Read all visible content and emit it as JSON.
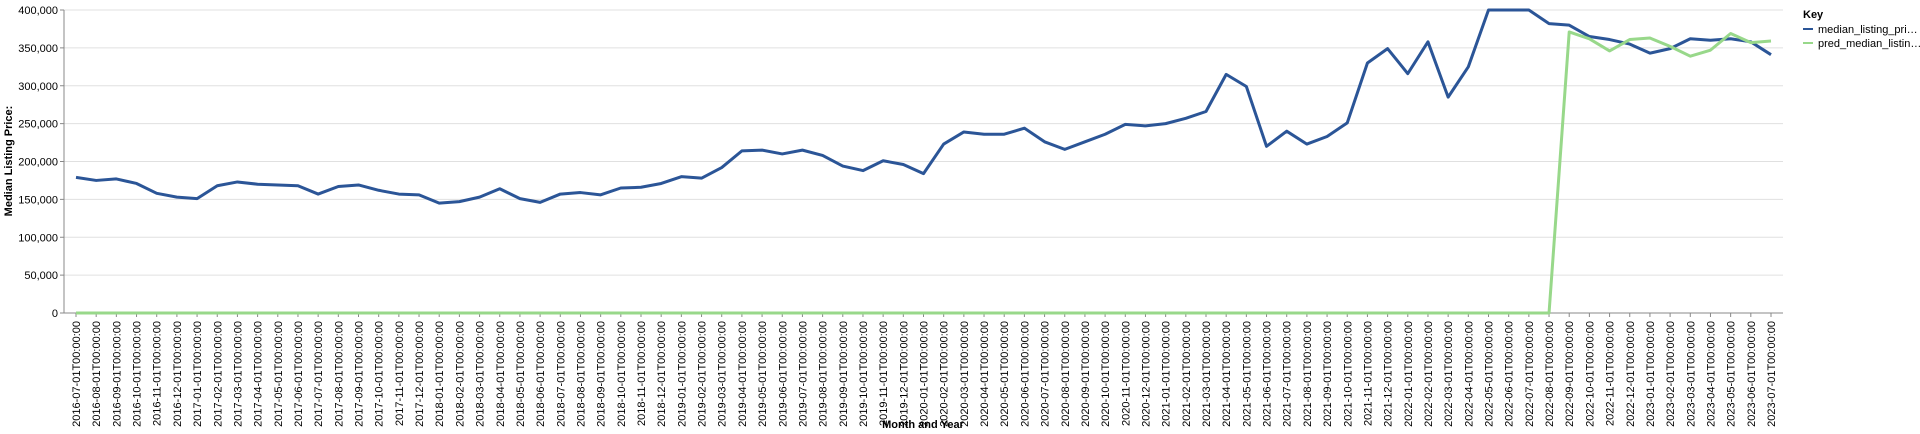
{
  "chart_data": {
    "type": "line",
    "y_label": "Median Listing Price:",
    "x_label": "Month and Year",
    "legend_title": "Key",
    "legend_position": "right",
    "grid": true,
    "ylim": [
      0,
      400000
    ],
    "yticks": [
      {
        "value": 0,
        "label": "0"
      },
      {
        "value": 50000,
        "label": "50,000"
      },
      {
        "value": 100000,
        "label": "100,000"
      },
      {
        "value": 150000,
        "label": "150,000"
      },
      {
        "value": 200000,
        "label": "200,000"
      },
      {
        "value": 250000,
        "label": "250,000"
      },
      {
        "value": 300000,
        "label": "300,000"
      },
      {
        "value": 350000,
        "label": "350,000"
      },
      {
        "value": 400000,
        "label": "400,000"
      }
    ],
    "categories": [
      "2016-07-01T00:00:00",
      "2016-08-01T00:00:00",
      "2016-09-01T00:00:00",
      "2016-10-01T00:00:00",
      "2016-11-01T00:00:00",
      "2016-12-01T00:00:00",
      "2017-01-01T00:00:00",
      "2017-02-01T00:00:00",
      "2017-03-01T00:00:00",
      "2017-04-01T00:00:00",
      "2017-05-01T00:00:00",
      "2017-06-01T00:00:00",
      "2017-07-01T00:00:00",
      "2017-08-01T00:00:00",
      "2017-09-01T00:00:00",
      "2017-10-01T00:00:00",
      "2017-11-01T00:00:00",
      "2017-12-01T00:00:00",
      "2018-01-01T00:00:00",
      "2018-02-01T00:00:00",
      "2018-03-01T00:00:00",
      "2018-04-01T00:00:00",
      "2018-05-01T00:00:00",
      "2018-06-01T00:00:00",
      "2018-07-01T00:00:00",
      "2018-08-01T00:00:00",
      "2018-09-01T00:00:00",
      "2018-10-01T00:00:00",
      "2018-11-01T00:00:00",
      "2018-12-01T00:00:00",
      "2019-01-01T00:00:00",
      "2019-02-01T00:00:00",
      "2019-03-01T00:00:00",
      "2019-04-01T00:00:00",
      "2019-05-01T00:00:00",
      "2019-06-01T00:00:00",
      "2019-07-01T00:00:00",
      "2019-08-01T00:00:00",
      "2019-09-01T00:00:00",
      "2019-10-01T00:00:00",
      "2019-11-01T00:00:00",
      "2019-12-01T00:00:00",
      "2020-01-01T00:00:00",
      "2020-02-01T00:00:00",
      "2020-03-01T00:00:00",
      "2020-04-01T00:00:00",
      "2020-05-01T00:00:00",
      "2020-06-01T00:00:00",
      "2020-07-01T00:00:00",
      "2020-08-01T00:00:00",
      "2020-09-01T00:00:00",
      "2020-10-01T00:00:00",
      "2020-11-01T00:00:00",
      "2020-12-01T00:00:00",
      "2021-01-01T00:00:00",
      "2021-02-01T00:00:00",
      "2021-03-01T00:00:00",
      "2021-04-01T00:00:00",
      "2021-05-01T00:00:00",
      "2021-06-01T00:00:00",
      "2021-07-01T00:00:00",
      "2021-08-01T00:00:00",
      "2021-09-01T00:00:00",
      "2021-10-01T00:00:00",
      "2021-11-01T00:00:00",
      "2021-12-01T00:00:00",
      "2022-01-01T00:00:00",
      "2022-02-01T00:00:00",
      "2022-03-01T00:00:00",
      "2022-04-01T00:00:00",
      "2022-05-01T00:00:00",
      "2022-06-01T00:00:00",
      "2022-07-01T00:00:00",
      "2022-08-01T00:00:00",
      "2022-09-01T00:00:00",
      "2022-10-01T00:00:00",
      "2022-11-01T00:00:00",
      "2022-12-01T00:00:00",
      "2023-01-01T00:00:00",
      "2023-02-01T00:00:00",
      "2023-03-01T00:00:00",
      "2023-04-01T00:00:00",
      "2023-05-01T00:00:00",
      "2023-06-01T00:00:00",
      "2023-07-01T00:00:00"
    ],
    "series": [
      {
        "name": "median_listing_pri…",
        "color": "#2b5597",
        "values": [
          179000,
          175000,
          177000,
          171000,
          158000,
          153000,
          151000,
          168000,
          173000,
          170000,
          169000,
          168000,
          157000,
          167000,
          169000,
          162000,
          157000,
          156000,
          145000,
          147000,
          153000,
          164000,
          151000,
          146000,
          157000,
          159000,
          156000,
          165000,
          166000,
          171000,
          180000,
          178000,
          192000,
          214000,
          215000,
          210000,
          215000,
          208000,
          194000,
          188000,
          201000,
          196000,
          184000,
          223000,
          239000,
          236000,
          236000,
          244000,
          226000,
          216000,
          226000,
          236000,
          249000,
          247000,
          250000,
          257000,
          266000,
          315000,
          299000,
          220000,
          240000,
          223000,
          233000,
          251000,
          330000,
          349000,
          316000,
          358000,
          285000,
          325000,
          400000,
          400000,
          400000,
          382000,
          380000,
          365000,
          361000,
          355000,
          343000,
          349000,
          362000,
          360000,
          362000,
          358000,
          341000
        ]
      },
      {
        "name": "pred_median_listin…",
        "color": "#98d88a",
        "values": [
          0,
          0,
          0,
          0,
          0,
          0,
          0,
          0,
          0,
          0,
          0,
          0,
          0,
          0,
          0,
          0,
          0,
          0,
          0,
          0,
          0,
          0,
          0,
          0,
          0,
          0,
          0,
          0,
          0,
          0,
          0,
          0,
          0,
          0,
          0,
          0,
          0,
          0,
          0,
          0,
          0,
          0,
          0,
          0,
          0,
          0,
          0,
          0,
          0,
          0,
          0,
          0,
          0,
          0,
          0,
          0,
          0,
          0,
          0,
          0,
          0,
          0,
          0,
          0,
          0,
          0,
          0,
          0,
          0,
          0,
          0,
          0,
          0,
          0,
          371000,
          362000,
          346000,
          361000,
          363000,
          352000,
          339000,
          347000,
          369000,
          357000,
          359000
        ]
      }
    ]
  }
}
